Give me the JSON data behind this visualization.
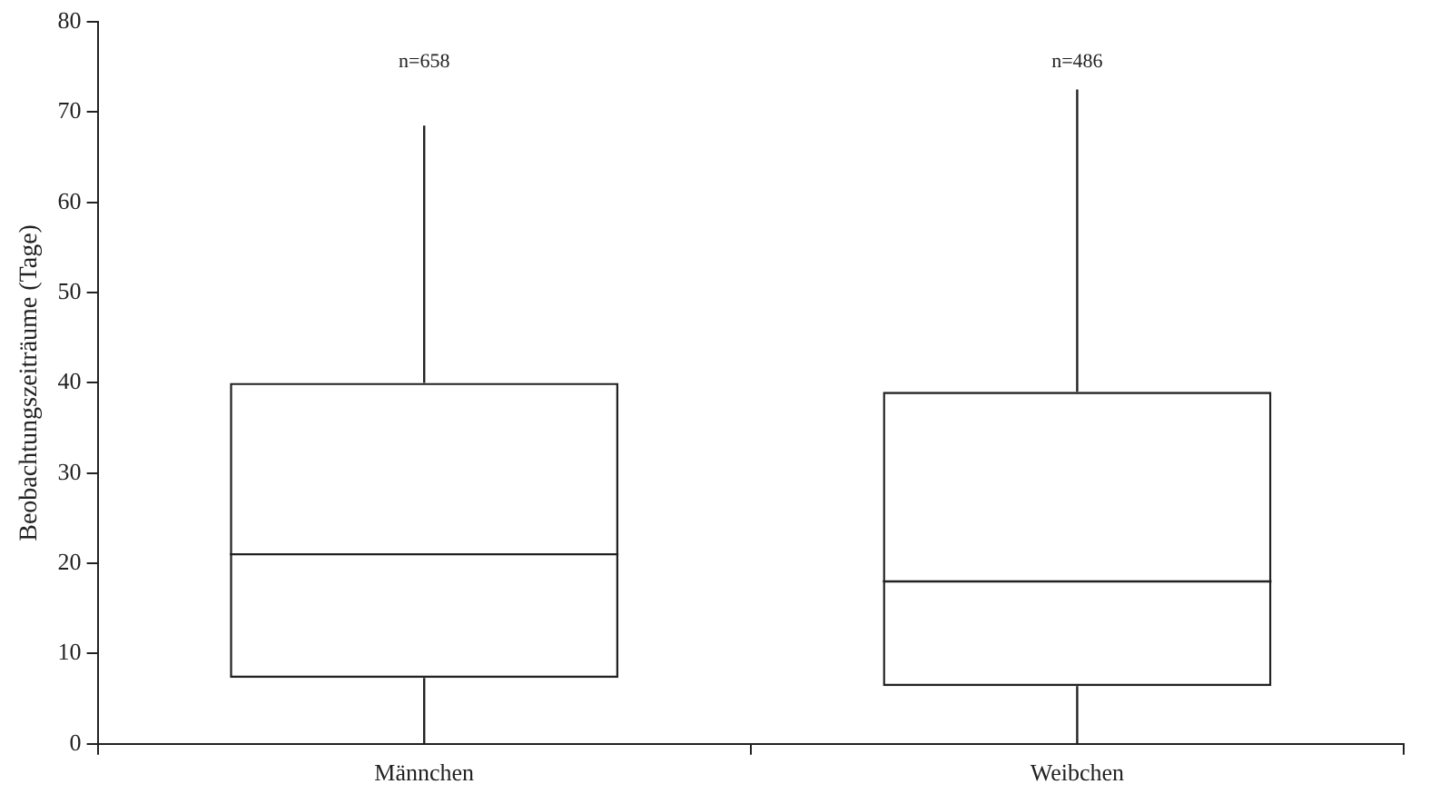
{
  "chart_data": {
    "type": "box",
    "ylabel": "Beobachtungszeiträume (Tage)",
    "categories": [
      "Männchen",
      "Weibchen"
    ],
    "boxes": [
      {
        "low": 0,
        "q1": 7.3,
        "median": 21,
        "q3": 40,
        "high": 68.5
      },
      {
        "low": 0,
        "q1": 6.4,
        "median": 18,
        "q3": 39,
        "high": 72.5
      }
    ],
    "color": "#222222",
    "ylim": [
      0,
      80
    ],
    "yticks": [
      0,
      10,
      20,
      30,
      40,
      50,
      60,
      70,
      80
    ],
    "grid": false,
    "legend": false,
    "annotations": [
      "n=658",
      "n=486"
    ]
  }
}
